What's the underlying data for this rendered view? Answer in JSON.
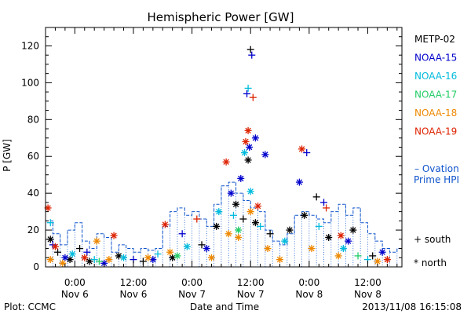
{
  "chart_data": {
    "type": "scatter",
    "title": "Hemispheric Power [GW]",
    "ylabel": "P [GW]",
    "xlabel": "Date and Time",
    "ylim": [
      0,
      130
    ],
    "xlim": [
      "2013-11-05T18:00",
      "2013-11-08T19:00"
    ],
    "yticks": [
      0,
      20,
      40,
      60,
      80,
      100,
      120
    ],
    "xticks": [
      {
        "time": "2013-11-06T00:00",
        "line1": "0:00",
        "line2": "Nov 6"
      },
      {
        "time": "2013-11-06T12:00",
        "line1": "12:00",
        "line2": "Nov 6"
      },
      {
        "time": "2013-11-07T00:00",
        "line1": "0:00",
        "line2": "Nov 7"
      },
      {
        "time": "2013-11-07T12:00",
        "line1": "12:00",
        "line2": "Nov 7"
      },
      {
        "time": "2013-11-08T00:00",
        "line1": "0:00",
        "line2": "Nov 8"
      },
      {
        "time": "2013-11-08T12:00",
        "line1": "12:00",
        "line2": "Nov 8"
      }
    ],
    "markers": {
      "south": "+",
      "north": "*"
    },
    "marker_legend": [
      {
        "symbol": "+",
        "label": "south"
      },
      {
        "symbol": "*",
        "label": "north"
      }
    ],
    "series": [
      {
        "name": "METP-02",
        "color": "#000000",
        "points": [
          {
            "t": "2013-11-05T19:00",
            "y": 15,
            "m": "north"
          },
          {
            "t": "2013-11-05T20:30",
            "y": 8,
            "m": "south"
          },
          {
            "t": "2013-11-05T23:00",
            "y": 4,
            "m": "north"
          },
          {
            "t": "2013-11-06T01:00",
            "y": 10,
            "m": "south"
          },
          {
            "t": "2013-11-06T03:00",
            "y": 3,
            "m": "north"
          },
          {
            "t": "2013-11-06T09:00",
            "y": 6,
            "m": "north"
          },
          {
            "t": "2013-11-06T14:00",
            "y": 3,
            "m": "south"
          },
          {
            "t": "2013-11-06T20:00",
            "y": 5,
            "m": "north"
          },
          {
            "t": "2013-11-07T02:00",
            "y": 12,
            "m": "south"
          },
          {
            "t": "2013-11-07T05:00",
            "y": 22,
            "m": "north"
          },
          {
            "t": "2013-11-07T09:00",
            "y": 34,
            "m": "north"
          },
          {
            "t": "2013-11-07T10:30",
            "y": 26,
            "m": "south"
          },
          {
            "t": "2013-11-07T11:30",
            "y": 58,
            "m": "north"
          },
          {
            "t": "2013-11-07T12:00",
            "y": 118,
            "m": "south"
          },
          {
            "t": "2013-11-07T13:00",
            "y": 24,
            "m": "north"
          },
          {
            "t": "2013-11-07T16:00",
            "y": 18,
            "m": "south"
          },
          {
            "t": "2013-11-07T20:00",
            "y": 20,
            "m": "north"
          },
          {
            "t": "2013-11-07T23:00",
            "y": 28,
            "m": "north"
          },
          {
            "t": "2013-11-08T01:30",
            "y": 38,
            "m": "south"
          },
          {
            "t": "2013-11-08T04:00",
            "y": 16,
            "m": "north"
          },
          {
            "t": "2013-11-08T09:00",
            "y": 20,
            "m": "north"
          },
          {
            "t": "2013-11-08T13:00",
            "y": 6,
            "m": "south"
          }
        ]
      },
      {
        "name": "NOAA-15",
        "color": "#0000cc",
        "points": [
          {
            "t": "2013-11-05T19:30",
            "y": 12,
            "m": "south"
          },
          {
            "t": "2013-11-05T22:00",
            "y": 5,
            "m": "north"
          },
          {
            "t": "2013-11-06T02:30",
            "y": 8,
            "m": "south"
          },
          {
            "t": "2013-11-06T06:00",
            "y": 2,
            "m": "north"
          },
          {
            "t": "2013-11-06T12:00",
            "y": 4,
            "m": "south"
          },
          {
            "t": "2013-11-06T16:00",
            "y": 4,
            "m": "north"
          },
          {
            "t": "2013-11-06T22:00",
            "y": 18,
            "m": "south"
          },
          {
            "t": "2013-11-07T03:00",
            "y": 10,
            "m": "north"
          },
          {
            "t": "2013-11-07T08:00",
            "y": 40,
            "m": "north"
          },
          {
            "t": "2013-11-07T10:00",
            "y": 48,
            "m": "north"
          },
          {
            "t": "2013-11-07T11:15",
            "y": 94,
            "m": "south"
          },
          {
            "t": "2013-11-07T11:45",
            "y": 65,
            "m": "north"
          },
          {
            "t": "2013-11-07T12:15",
            "y": 115,
            "m": "south"
          },
          {
            "t": "2013-11-07T13:00",
            "y": 70,
            "m": "north"
          },
          {
            "t": "2013-11-07T15:00",
            "y": 61,
            "m": "north"
          },
          {
            "t": "2013-11-07T22:00",
            "y": 46,
            "m": "north"
          },
          {
            "t": "2013-11-07T23:30",
            "y": 62,
            "m": "south"
          },
          {
            "t": "2013-11-08T03:00",
            "y": 35,
            "m": "south"
          },
          {
            "t": "2013-11-08T08:00",
            "y": 14,
            "m": "north"
          },
          {
            "t": "2013-11-08T15:00",
            "y": 8,
            "m": "north"
          }
        ]
      },
      {
        "name": "NOAA-16",
        "color": "#00bbdd",
        "points": [
          {
            "t": "2013-11-05T19:00",
            "y": 24,
            "m": "south"
          },
          {
            "t": "2013-11-05T23:30",
            "y": 7,
            "m": "north"
          },
          {
            "t": "2013-11-06T04:00",
            "y": 4,
            "m": "south"
          },
          {
            "t": "2013-11-06T10:00",
            "y": 5,
            "m": "north"
          },
          {
            "t": "2013-11-06T17:00",
            "y": 7,
            "m": "south"
          },
          {
            "t": "2013-11-06T23:00",
            "y": 11,
            "m": "north"
          },
          {
            "t": "2013-11-07T05:30",
            "y": 30,
            "m": "north"
          },
          {
            "t": "2013-11-07T08:30",
            "y": 28,
            "m": "south"
          },
          {
            "t": "2013-11-07T10:45",
            "y": 62,
            "m": "north"
          },
          {
            "t": "2013-11-07T11:30",
            "y": 97,
            "m": "south"
          },
          {
            "t": "2013-11-07T12:00",
            "y": 41,
            "m": "north"
          },
          {
            "t": "2013-11-07T14:00",
            "y": 22,
            "m": "south"
          },
          {
            "t": "2013-11-07T19:00",
            "y": 14,
            "m": "north"
          },
          {
            "t": "2013-11-08T02:00",
            "y": 22,
            "m": "south"
          },
          {
            "t": "2013-11-08T07:00",
            "y": 10,
            "m": "north"
          },
          {
            "t": "2013-11-08T12:00",
            "y": 4,
            "m": "south"
          }
        ]
      },
      {
        "name": "NOAA-17",
        "color": "#22cc66",
        "points": [
          {
            "t": "2013-11-06T05:00",
            "y": 3,
            "m": "south"
          },
          {
            "t": "2013-11-06T21:00",
            "y": 6,
            "m": "north"
          },
          {
            "t": "2013-11-07T09:30",
            "y": 20,
            "m": "north"
          },
          {
            "t": "2013-11-08T10:00",
            "y": 6,
            "m": "south"
          }
        ]
      },
      {
        "name": "NOAA-18",
        "color": "#ee8800",
        "points": [
          {
            "t": "2013-11-05T19:00",
            "y": 4,
            "m": "north"
          },
          {
            "t": "2013-11-05T21:30",
            "y": 2,
            "m": "north"
          },
          {
            "t": "2013-11-06T04:30",
            "y": 14,
            "m": "north"
          },
          {
            "t": "2013-11-06T07:00",
            "y": 4,
            "m": "north"
          },
          {
            "t": "2013-11-06T15:00",
            "y": 5,
            "m": "north"
          },
          {
            "t": "2013-11-06T19:30",
            "y": 8,
            "m": "north"
          },
          {
            "t": "2013-11-07T04:00",
            "y": 5,
            "m": "north"
          },
          {
            "t": "2013-11-07T07:30",
            "y": 18,
            "m": "north"
          },
          {
            "t": "2013-11-07T09:30",
            "y": 16,
            "m": "north"
          },
          {
            "t": "2013-11-07T12:00",
            "y": 30,
            "m": "north"
          },
          {
            "t": "2013-11-07T15:30",
            "y": 10,
            "m": "north"
          },
          {
            "t": "2013-11-07T18:00",
            "y": 4,
            "m": "north"
          },
          {
            "t": "2013-11-08T00:30",
            "y": 10,
            "m": "north"
          },
          {
            "t": "2013-11-08T06:00",
            "y": 6,
            "m": "north"
          },
          {
            "t": "2013-11-08T14:00",
            "y": 3,
            "m": "north"
          }
        ]
      },
      {
        "name": "NOAA-19",
        "color": "#dd2200",
        "points": [
          {
            "t": "2013-11-05T18:30",
            "y": 32,
            "m": "north"
          },
          {
            "t": "2013-11-05T20:00",
            "y": 11,
            "m": "north"
          },
          {
            "t": "2013-11-06T02:00",
            "y": 5,
            "m": "north"
          },
          {
            "t": "2013-11-06T08:00",
            "y": 17,
            "m": "north"
          },
          {
            "t": "2013-11-06T18:30",
            "y": 23,
            "m": "north"
          },
          {
            "t": "2013-11-07T01:00",
            "y": 26,
            "m": "south"
          },
          {
            "t": "2013-11-07T07:00",
            "y": 57,
            "m": "north"
          },
          {
            "t": "2013-11-07T11:00",
            "y": 68,
            "m": "north"
          },
          {
            "t": "2013-11-07T11:30",
            "y": 74,
            "m": "north"
          },
          {
            "t": "2013-11-07T12:30",
            "y": 92,
            "m": "south"
          },
          {
            "t": "2013-11-07T13:30",
            "y": 33,
            "m": "north"
          },
          {
            "t": "2013-11-07T22:30",
            "y": 64,
            "m": "north"
          },
          {
            "t": "2013-11-08T03:30",
            "y": 32,
            "m": "south"
          },
          {
            "t": "2013-11-08T06:30",
            "y": 17,
            "m": "north"
          },
          {
            "t": "2013-11-08T16:00",
            "y": 4,
            "m": "north"
          }
        ]
      },
      {
        "name": "Ovation Prime HPI",
        "label_lines": [
          "Ovation",
          "Prime HPI"
        ],
        "line_symbol": "–",
        "color": "#1155cc",
        "style": "step",
        "points": [
          {
            "t": "2013-11-05T18:00",
            "y": 25
          },
          {
            "t": "2013-11-05T19:30",
            "y": 18
          },
          {
            "t": "2013-11-05T21:00",
            "y": 12
          },
          {
            "t": "2013-11-05T22:30",
            "y": 20
          },
          {
            "t": "2013-11-06T00:00",
            "y": 24
          },
          {
            "t": "2013-11-06T01:30",
            "y": 14
          },
          {
            "t": "2013-11-06T03:00",
            "y": 10
          },
          {
            "t": "2013-11-06T04:30",
            "y": 18
          },
          {
            "t": "2013-11-06T06:00",
            "y": 16
          },
          {
            "t": "2013-11-06T07:30",
            "y": 8
          },
          {
            "t": "2013-11-06T09:00",
            "y": 12
          },
          {
            "t": "2013-11-06T10:30",
            "y": 10
          },
          {
            "t": "2013-11-06T12:00",
            "y": 8
          },
          {
            "t": "2013-11-06T13:30",
            "y": 10
          },
          {
            "t": "2013-11-06T15:00",
            "y": 9
          },
          {
            "t": "2013-11-06T16:30",
            "y": 10
          },
          {
            "t": "2013-11-06T18:00",
            "y": 22
          },
          {
            "t": "2013-11-06T19:30",
            "y": 30
          },
          {
            "t": "2013-11-06T21:00",
            "y": 32
          },
          {
            "t": "2013-11-06T22:30",
            "y": 28
          },
          {
            "t": "2013-11-07T00:00",
            "y": 30
          },
          {
            "t": "2013-11-07T01:30",
            "y": 26
          },
          {
            "t": "2013-11-07T03:00",
            "y": 22
          },
          {
            "t": "2013-11-07T04:30",
            "y": 34
          },
          {
            "t": "2013-11-07T06:00",
            "y": 44
          },
          {
            "t": "2013-11-07T07:30",
            "y": 46
          },
          {
            "t": "2013-11-07T09:00",
            "y": 40
          },
          {
            "t": "2013-11-07T10:30",
            "y": 36
          },
          {
            "t": "2013-11-07T12:00",
            "y": 32
          },
          {
            "t": "2013-11-07T13:30",
            "y": 30
          },
          {
            "t": "2013-11-07T15:00",
            "y": 20
          },
          {
            "t": "2013-11-07T16:30",
            "y": 14
          },
          {
            "t": "2013-11-07T18:00",
            "y": 12
          },
          {
            "t": "2013-11-07T19:30",
            "y": 18
          },
          {
            "t": "2013-11-07T21:00",
            "y": 28
          },
          {
            "t": "2013-11-07T22:30",
            "y": 30
          },
          {
            "t": "2013-11-08T00:00",
            "y": 28
          },
          {
            "t": "2013-11-08T01:30",
            "y": 26
          },
          {
            "t": "2013-11-08T03:00",
            "y": 24
          },
          {
            "t": "2013-11-08T04:30",
            "y": 30
          },
          {
            "t": "2013-11-08T06:00",
            "y": 34
          },
          {
            "t": "2013-11-08T07:30",
            "y": 28
          },
          {
            "t": "2013-11-08T09:00",
            "y": 32
          },
          {
            "t": "2013-11-08T10:30",
            "y": 24
          },
          {
            "t": "2013-11-08T12:00",
            "y": 18
          },
          {
            "t": "2013-11-08T13:30",
            "y": 14
          },
          {
            "t": "2013-11-08T15:00",
            "y": 10
          },
          {
            "t": "2013-11-08T16:30",
            "y": 8
          },
          {
            "t": "2013-11-08T18:00",
            "y": 10
          },
          {
            "t": "2013-11-08T19:00",
            "y": 10
          }
        ]
      }
    ]
  },
  "footer": {
    "plot_credit": "Plot: CCMC",
    "timestamp": "2013/11/08 16:15:08"
  }
}
